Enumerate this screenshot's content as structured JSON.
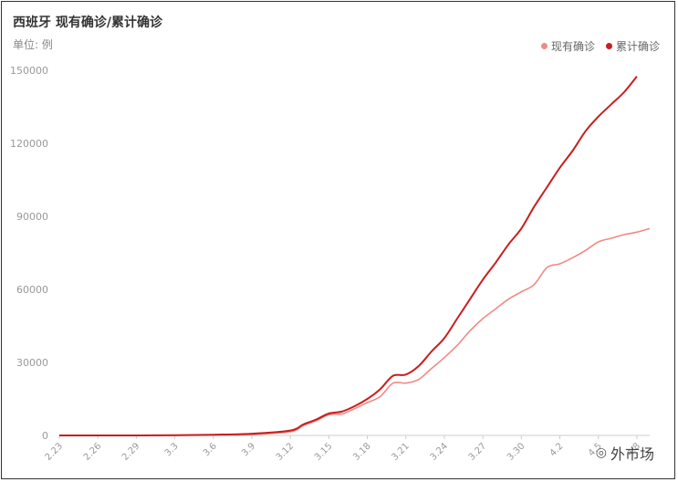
{
  "chart_data": {
    "type": "line",
    "title": "西班牙 现有确诊/累计确诊",
    "unit": "单位: 例",
    "x_ticks": [
      "2.23",
      "2.26",
      "2.29",
      "3.3",
      "3.6",
      "3.9",
      "3.12",
      "3.15",
      "3.18",
      "3.21",
      "3.24",
      "3.27",
      "3.30",
      "4.2",
      "4.5",
      "4.8"
    ],
    "yticks": [
      0,
      30000,
      60000,
      90000,
      120000,
      150000
    ],
    "ylim": [
      0,
      150000
    ],
    "legend_position": "top-right",
    "series": [
      {
        "name": "现有确诊",
        "color": "#f08a84",
        "points": [
          [
            "2.23",
            0
          ],
          [
            "2.26",
            0
          ],
          [
            "2.29",
            0
          ],
          [
            "3.3",
            0
          ],
          [
            "3.6",
            100
          ],
          [
            "3.9",
            400
          ],
          [
            "3.12",
            1500
          ],
          [
            "3.13",
            4000
          ],
          [
            "3.14",
            6000
          ],
          [
            "3.15",
            8500
          ],
          [
            "3.16",
            8800
          ],
          [
            "3.17",
            11000
          ],
          [
            "3.18",
            13500
          ],
          [
            "3.19",
            16000
          ],
          [
            "3.20",
            21500
          ],
          [
            "3.21",
            21500
          ],
          [
            "3.22",
            23000
          ],
          [
            "3.23",
            27500
          ],
          [
            "3.24",
            32000
          ],
          [
            "3.25",
            37000
          ],
          [
            "3.26",
            43000
          ],
          [
            "3.27",
            48000
          ],
          [
            "3.28",
            52000
          ],
          [
            "3.29",
            56000
          ],
          [
            "3.30",
            59000
          ],
          [
            "3.31",
            62000
          ],
          [
            "4.1",
            69000
          ],
          [
            "4.2",
            70500
          ],
          [
            "4.3",
            73000
          ],
          [
            "4.4",
            76000
          ],
          [
            "4.5",
            79500
          ],
          [
            "4.6",
            81000
          ],
          [
            "4.7",
            82500
          ],
          [
            "4.8",
            83500
          ],
          [
            "4.9",
            85000
          ]
        ]
      },
      {
        "name": "累计确诊",
        "color": "#c81e1e",
        "points": [
          [
            "2.23",
            0
          ],
          [
            "2.26",
            0
          ],
          [
            "2.29",
            0
          ],
          [
            "3.3",
            100
          ],
          [
            "3.6",
            300
          ],
          [
            "3.9",
            700
          ],
          [
            "3.12",
            2000
          ],
          [
            "3.13",
            4500
          ],
          [
            "3.14",
            6500
          ],
          [
            "3.15",
            9000
          ],
          [
            "3.16",
            9800
          ],
          [
            "3.17",
            12000
          ],
          [
            "3.18",
            15000
          ],
          [
            "3.19",
            19000
          ],
          [
            "3.20",
            24500
          ],
          [
            "3.21",
            25000
          ],
          [
            "3.22",
            28500
          ],
          [
            "3.23",
            34500
          ],
          [
            "3.24",
            40000
          ],
          [
            "3.25",
            48000
          ],
          [
            "3.26",
            56000
          ],
          [
            "3.27",
            64000
          ],
          [
            "3.28",
            71000
          ],
          [
            "3.29",
            78500
          ],
          [
            "3.30",
            85000
          ],
          [
            "3.31",
            94000
          ],
          [
            "4.1",
            102000
          ],
          [
            "4.2",
            110000
          ],
          [
            "4.3",
            117000
          ],
          [
            "4.4",
            125000
          ],
          [
            "4.5",
            131000
          ],
          [
            "4.6",
            136000
          ],
          [
            "4.7",
            141000
          ],
          [
            "4.8",
            147500
          ]
        ]
      }
    ]
  },
  "watermark": {
    "text": "外市场",
    "icon": "wechat-icon"
  }
}
